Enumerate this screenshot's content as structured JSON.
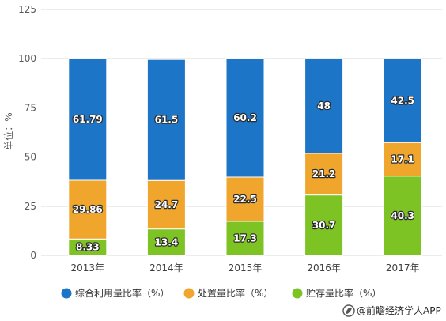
{
  "chart_data": {
    "type": "bar",
    "stacked": true,
    "categories": [
      "2013年",
      "2014年",
      "2015年",
      "2016年",
      "2017年"
    ],
    "series": [
      {
        "name": "综合利用量比率（%）",
        "values": [
          61.79,
          61.5,
          60.2,
          48,
          42.5
        ],
        "color": "#1c75c7"
      },
      {
        "name": "处置量比率（%）",
        "values": [
          29.86,
          24.7,
          22.5,
          21.2,
          17.1
        ],
        "color": "#f0a62c"
      },
      {
        "name": "贮存量比率（%）",
        "values": [
          8.33,
          13.4,
          17.3,
          30.7,
          40.3
        ],
        "color": "#7ec324"
      }
    ],
    "ylabel": "单位：%",
    "yticks": [
      0,
      25,
      50,
      75,
      100,
      125
    ],
    "ylim": [
      0,
      125
    ],
    "grid": true,
    "legend": "bottom"
  },
  "footer": {
    "credit": "@前瞻经济学人APP",
    "logo_icon": "qianzhan-logo-icon"
  }
}
